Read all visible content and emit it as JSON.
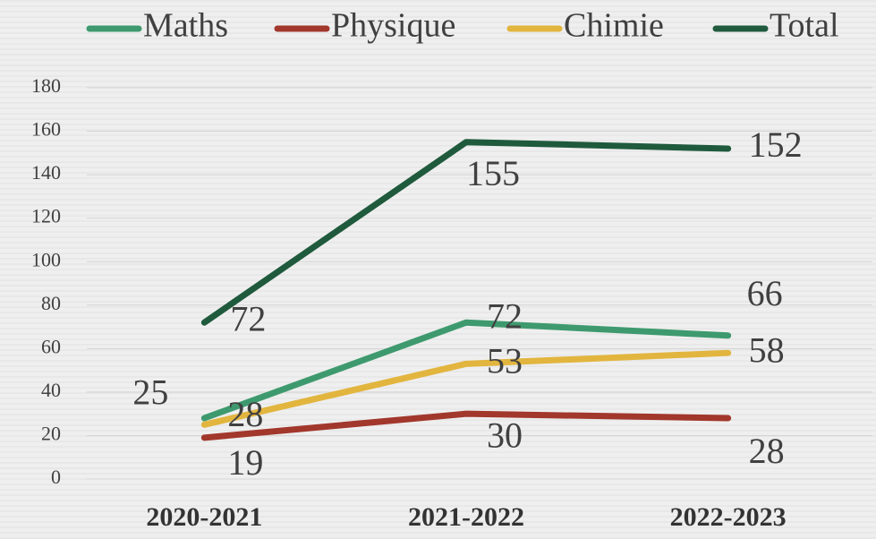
{
  "chart_data": {
    "type": "line",
    "categories": [
      "2020-2021",
      "2021-2022",
      "2022-2023"
    ],
    "series": [
      {
        "name": "Maths",
        "color": "#3e9a6e",
        "values": [
          28,
          72,
          66
        ]
      },
      {
        "name": "Physique",
        "color": "#a2372c",
        "values": [
          19,
          30,
          28
        ]
      },
      {
        "name": "Chimie",
        "color": "#e2b53e",
        "values": [
          25,
          53,
          58
        ]
      },
      {
        "name": "Total",
        "color": "#1f5a3d",
        "values": [
          72,
          155,
          152
        ]
      }
    ],
    "ylim": [
      0,
      180
    ],
    "yticks": [
      0,
      20,
      40,
      60,
      80,
      100,
      120,
      140,
      160,
      180
    ],
    "grid": true
  }
}
